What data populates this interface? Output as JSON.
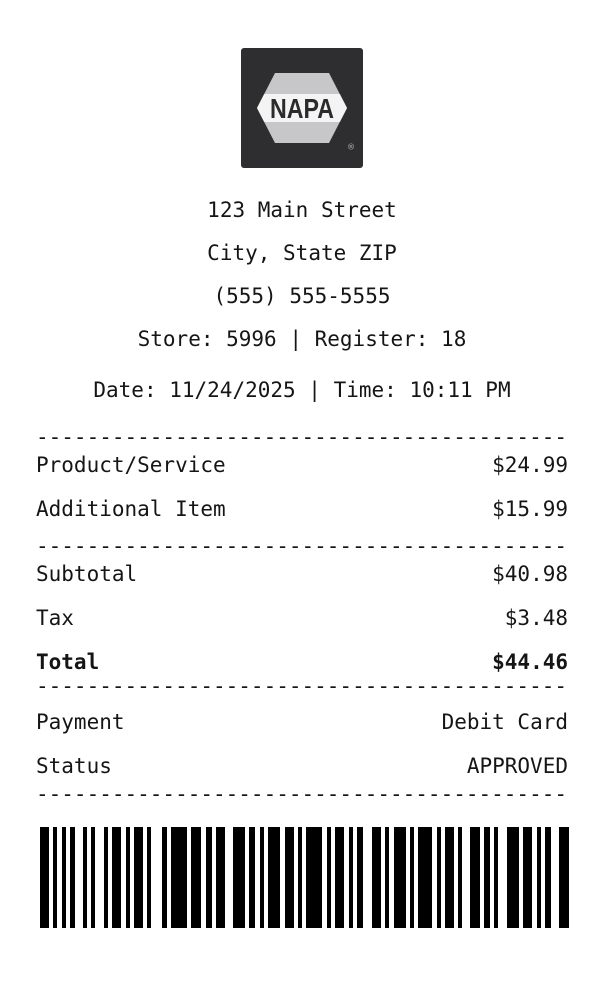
{
  "logo": {
    "brand": "NAPA",
    "registered_mark": "®",
    "bg_color": "#2e2e30",
    "hexagon_color": "#c7c7c9",
    "band_color": "#f4f4f4",
    "text_color": "#2b2b2d"
  },
  "header": {
    "address_line1": "123 Main Street",
    "address_line2": "City, State ZIP",
    "phone": "(555) 555-5555",
    "store_line": "Store: 5996 | Register: 18",
    "date_line": "Date: 11/24/2025 | Time: 10:11 PM"
  },
  "items": [
    {
      "name": "Product/Service",
      "price": "$24.99"
    },
    {
      "name": "Additional Item",
      "price": "$15.99"
    }
  ],
  "totals": {
    "subtotal_label": "Subtotal",
    "subtotal": "$40.98",
    "tax_label": "Tax",
    "tax": "$3.48",
    "total_label": "Total",
    "total": "$44.46"
  },
  "payment": {
    "payment_label": "Payment",
    "method": "Debit Card",
    "status_label": "Status",
    "status": "APPROVED"
  },
  "divider": "------------------------------------------",
  "barcode": {
    "bars": [
      9,
      4,
      4,
      5,
      4,
      4,
      5,
      8,
      4,
      4,
      4,
      9,
      4,
      4,
      9,
      5,
      4,
      4,
      9,
      4,
      4,
      11,
      5,
      4,
      16,
      4,
      10,
      5,
      6,
      4,
      9,
      8,
      12,
      4,
      6,
      5,
      4,
      4,
      12,
      5,
      9,
      4,
      4,
      4,
      16,
      5,
      4,
      4,
      9,
      5,
      4,
      4,
      6,
      9,
      9,
      4,
      4,
      5,
      12,
      4,
      4,
      4,
      14,
      5,
      4,
      4,
      9,
      4,
      4,
      8,
      10,
      4,
      6,
      4,
      4,
      9,
      12,
      4,
      9,
      5,
      4,
      4,
      6,
      8,
      10
    ]
  }
}
